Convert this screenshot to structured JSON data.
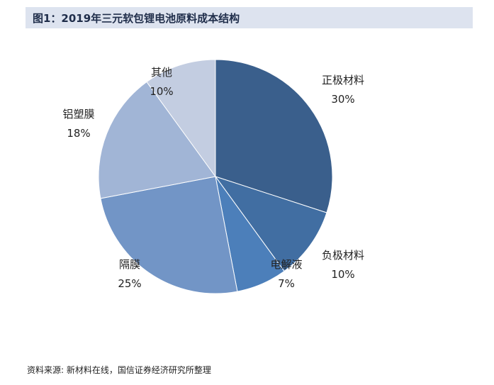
{
  "title": "图1：2019年三元软包锂电池原料成本结构",
  "source": "资料来源: 新材料在线，国信证券经济研究所整理",
  "chart_data": {
    "type": "pie",
    "title": "图1：2019年三元软包锂电池原料成本结构",
    "slices": [
      {
        "label": "正极材料",
        "value": 30,
        "value_label": "30%",
        "color": "#3a5f8c"
      },
      {
        "label": "负极材料",
        "value": 10,
        "value_label": "10%",
        "color": "#416ea2"
      },
      {
        "label": "电解液",
        "value": 7,
        "value_label": "7%",
        "color": "#4c7fba"
      },
      {
        "label": "隔膜",
        "value": 25,
        "value_label": "25%",
        "color": "#7295c6"
      },
      {
        "label": "铝塑膜",
        "value": 18,
        "value_label": "18%",
        "color": "#a1b5d6"
      },
      {
        "label": "其他",
        "value": 10,
        "value_label": "10%",
        "color": "#c3cde1"
      }
    ]
  }
}
